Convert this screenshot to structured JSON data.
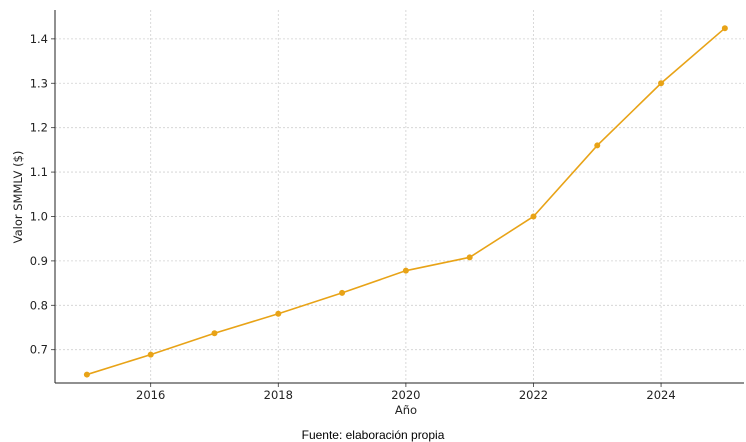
{
  "chart_data": {
    "type": "line",
    "title": "",
    "xlabel": "Año",
    "ylabel": "Valor SMMLV ($)",
    "x": [
      2015,
      2016,
      2017,
      2018,
      2019,
      2020,
      2021,
      2022,
      2023,
      2024,
      2025
    ],
    "series": [
      {
        "values": [
          0.644,
          0.689,
          0.737,
          0.781,
          0.828,
          0.878,
          0.908,
          1.0,
          1.16,
          1.3,
          1.424
        ],
        "color": "#e8a317"
      }
    ],
    "xlim": [
      2014.5,
      2025.3
    ],
    "ylim": [
      0.625,
      1.465
    ],
    "xticks": [
      "2016",
      "2018",
      "2020",
      "2022",
      "2024"
    ],
    "yticks": [
      "0.7",
      "0.8",
      "0.9",
      "1.0",
      "1.1",
      "1.2",
      "1.3",
      "1.4"
    ],
    "grid": true,
    "legend": "none"
  },
  "footer": {
    "source": "Fuente: elaboración propia"
  }
}
